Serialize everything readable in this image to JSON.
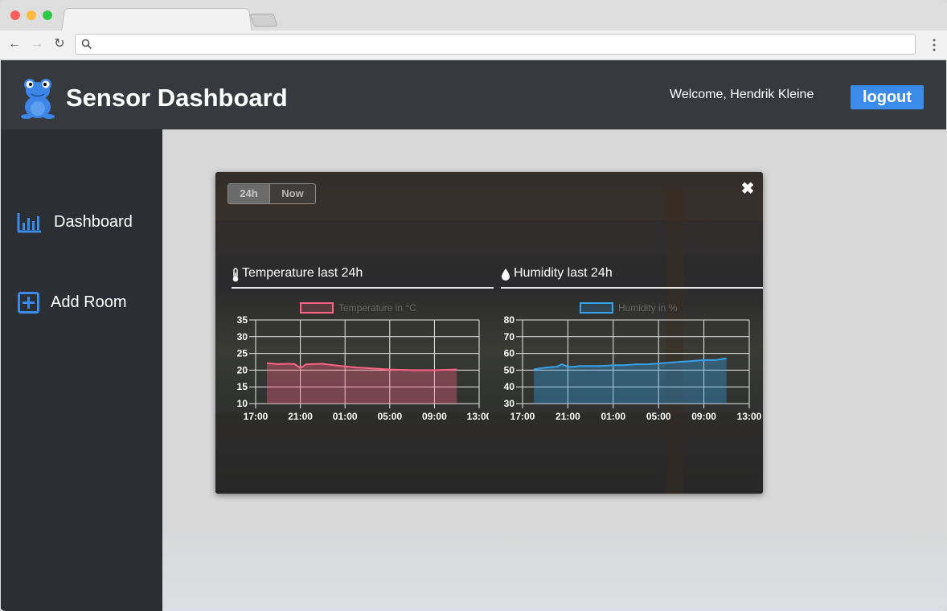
{
  "app": {
    "title": "Sensor Dashboard",
    "welcome": "Welcome, Hendrik Kleine",
    "logout_label": "logout"
  },
  "sidebar": {
    "items": [
      {
        "label": "Dashboard",
        "icon": "bar-chart-icon"
      },
      {
        "label": "Add Room",
        "icon": "add-square-icon"
      }
    ]
  },
  "modal": {
    "range_buttons": [
      {
        "label": "24h",
        "active": true
      },
      {
        "label": "Now",
        "active": false
      }
    ],
    "close_label": "✖"
  },
  "colors": {
    "header": "#363a3f",
    "sidebar": "#2b2f33",
    "accent": "#3b8beb",
    "temperature": "#ff6384",
    "humidity": "#36a2eb"
  },
  "chart_data": [
    {
      "type": "area",
      "title": "Temperature last 24h",
      "title_icon": "thermometer-icon",
      "legend": "Temperature in °C",
      "legend_position": "top",
      "x_ticks": [
        "17:00",
        "21:00",
        "01:00",
        "05:00",
        "09:00",
        "13:00"
      ],
      "y_ticks": [
        "35",
        "30",
        "25",
        "20",
        "15",
        "10"
      ],
      "ylim": [
        10,
        35
      ],
      "grid": true,
      "series": [
        {
          "name": "Temperature in °C",
          "color": "#ff6384",
          "x": [
            "18:00",
            "19:00",
            "20:00",
            "20:30",
            "21:00",
            "21:30",
            "22:00",
            "23:00",
            "00:00",
            "01:00",
            "02:00",
            "03:00",
            "04:00",
            "05:00",
            "06:00",
            "07:00",
            "08:00",
            "09:00",
            "10:00",
            "11:00"
          ],
          "values": [
            22.1,
            21.8,
            21.9,
            21.8,
            20.6,
            21.7,
            21.8,
            21.9,
            21.5,
            21.1,
            20.8,
            20.6,
            20.4,
            20.2,
            20.1,
            20.0,
            20.0,
            20.0,
            20.1,
            20.2
          ]
        }
      ]
    },
    {
      "type": "area",
      "title": "Humidity last 24h",
      "title_icon": "droplet-icon",
      "legend": "Humidity in %",
      "legend_position": "top",
      "x_ticks": [
        "17:00",
        "21:00",
        "01:00",
        "05:00",
        "09:00",
        "13:00"
      ],
      "y_ticks": [
        "80",
        "70",
        "60",
        "50",
        "40",
        "30"
      ],
      "ylim": [
        30,
        80
      ],
      "grid": true,
      "series": [
        {
          "name": "Humidity in %",
          "color": "#36a2eb",
          "x": [
            "18:00",
            "19:00",
            "20:00",
            "20:30",
            "21:00",
            "21:30",
            "22:00",
            "23:00",
            "00:00",
            "01:00",
            "02:00",
            "03:00",
            "04:00",
            "05:00",
            "06:00",
            "07:00",
            "08:00",
            "09:00",
            "10:00",
            "11:00"
          ],
          "values": [
            50.5,
            51.5,
            52.0,
            53.5,
            52.0,
            52.0,
            52.5,
            52.5,
            52.5,
            53.0,
            53.0,
            53.5,
            53.5,
            54.0,
            54.5,
            55.0,
            55.5,
            56.0,
            56.0,
            57.0
          ]
        }
      ]
    }
  ]
}
